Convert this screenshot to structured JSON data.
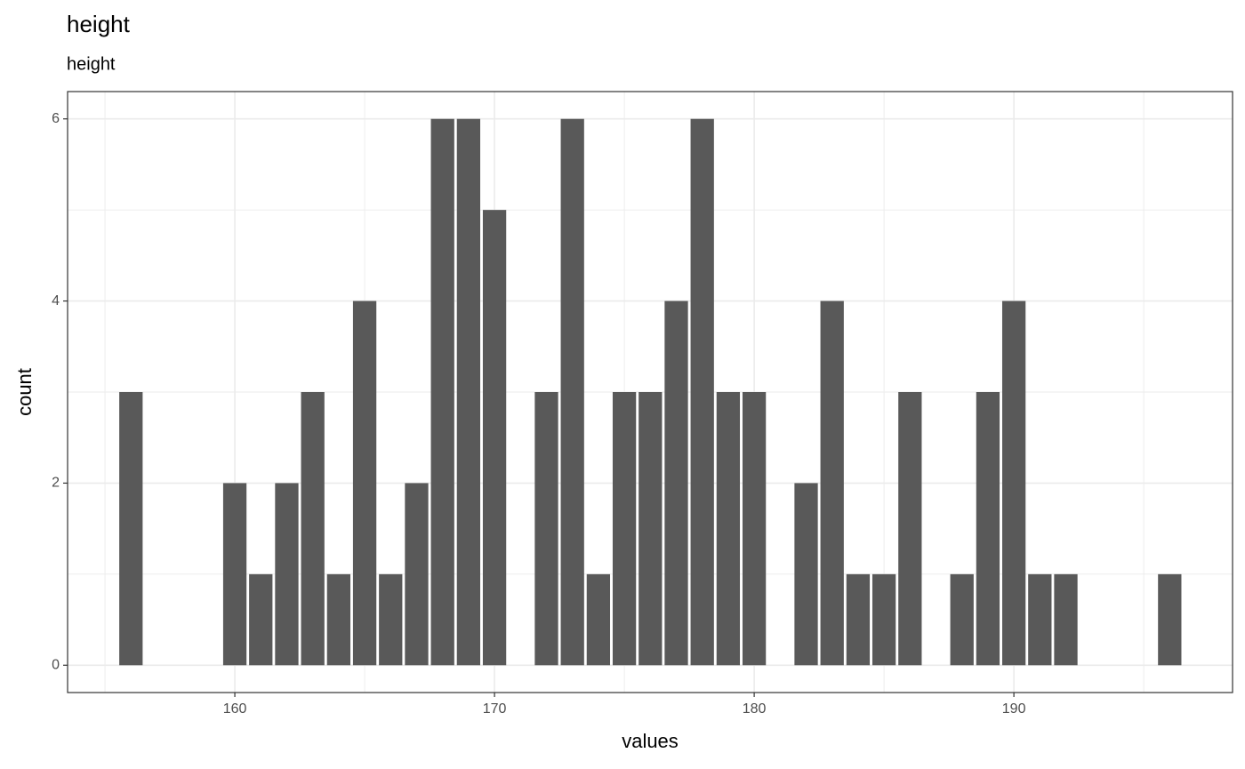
{
  "chart_data": {
    "type": "bar",
    "title": "height",
    "subtitle": "height",
    "x_label": "values",
    "y_label": "count",
    "x": [
      156,
      160,
      161,
      162,
      163,
      164,
      165,
      166,
      167,
      168,
      169,
      170,
      172,
      173,
      174,
      175,
      176,
      177,
      178,
      179,
      180,
      182,
      183,
      184,
      185,
      186,
      188,
      189,
      190,
      191,
      192,
      196
    ],
    "values": [
      3,
      2,
      1,
      2,
      3,
      1,
      4,
      1,
      2,
      6,
      6,
      5,
      3,
      6,
      1,
      3,
      3,
      4,
      6,
      3,
      3,
      2,
      4,
      1,
      1,
      3,
      1,
      3,
      4,
      1,
      1,
      1
    ],
    "color": "#595959",
    "xlim": [
      153.56,
      198.42
    ],
    "xticks": [
      160,
      170,
      180,
      190
    ],
    "ylim": [
      -0.3,
      6.3
    ],
    "yticks": [
      0,
      2,
      4,
      6
    ],
    "grid": true,
    "minor_grid": true
  }
}
